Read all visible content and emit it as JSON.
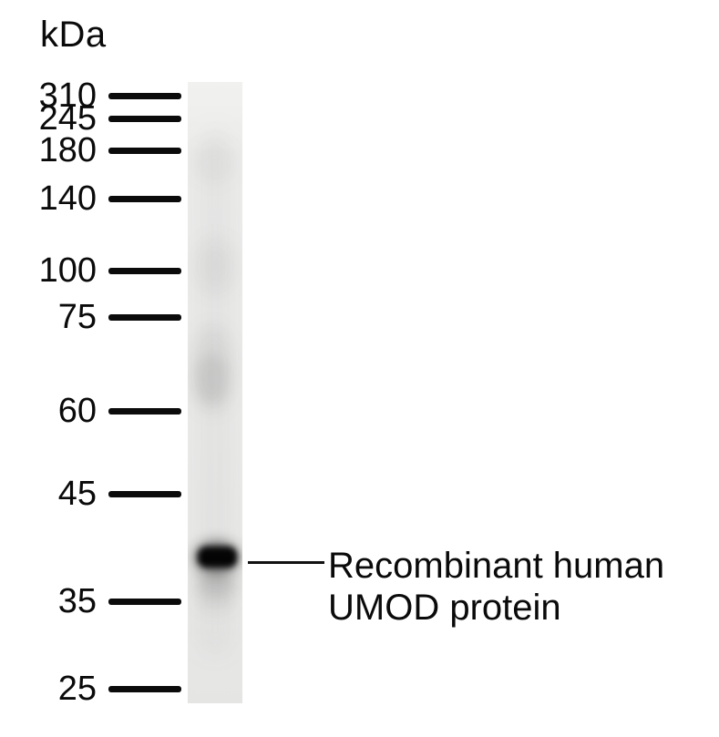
{
  "figure": {
    "kind": "western-blot",
    "lanes_count": 1
  },
  "ladder": {
    "unit_label": "kDa",
    "markers": [
      {
        "label": "310",
        "kda": 310
      },
      {
        "label": "245",
        "kda": 245
      },
      {
        "label": "180",
        "kda": 180
      },
      {
        "label": "140",
        "kda": 140
      },
      {
        "label": "100",
        "kda": 100
      },
      {
        "label": "75",
        "kda": 75
      },
      {
        "label": "60",
        "kda": 60
      },
      {
        "label": "45",
        "kda": 45
      },
      {
        "label": "35",
        "kda": 35
      },
      {
        "label": "25",
        "kda": 25
      }
    ]
  },
  "annotation": {
    "line1": "Recombinant human",
    "line2": "UMOD protein"
  },
  "colors": {
    "background": "#ffffff",
    "text": "#0a0a0a",
    "marker_dash": "#0b0b0b",
    "lane_background": "#ebebea",
    "band": "#050505"
  }
}
